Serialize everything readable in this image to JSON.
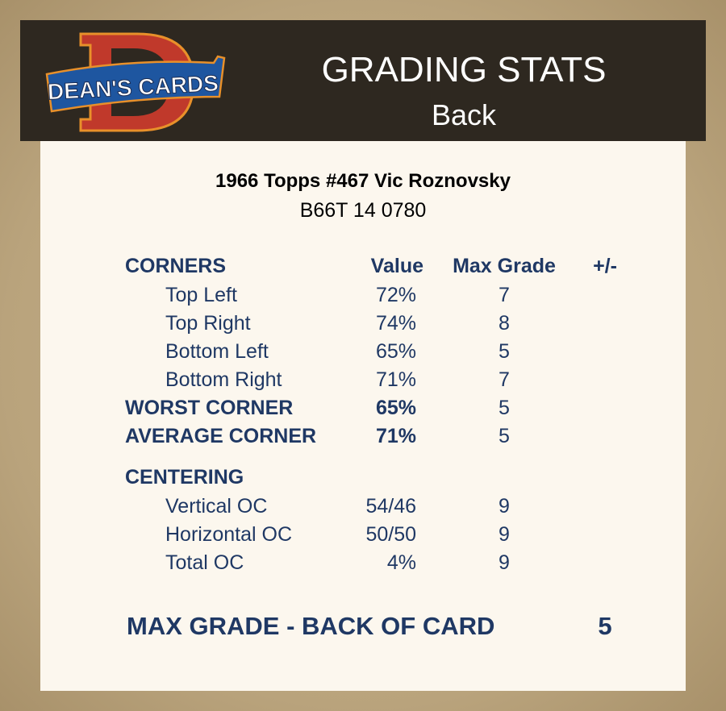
{
  "header": {
    "logo_text": "DEAN'S CARDS",
    "title": "GRADING STATS",
    "subtitle": "Back"
  },
  "card": {
    "name": "1966 Topps #467 Vic Roznovsky",
    "code": "B66T 14 0780"
  },
  "columns": {
    "section": "CORNERS",
    "value": "Value",
    "max_grade": "Max Grade",
    "plus_minus": "+/-"
  },
  "corners": [
    {
      "label": "Top Left",
      "value": "72%",
      "max_grade": "7"
    },
    {
      "label": "Top Right",
      "value": "74%",
      "max_grade": "8"
    },
    {
      "label": "Bottom Left",
      "value": "65%",
      "max_grade": "5"
    },
    {
      "label": "Bottom Right",
      "value": "71%",
      "max_grade": "7"
    }
  ],
  "worst": {
    "label": "WORST CORNER",
    "value": "65%",
    "max_grade": "5"
  },
  "average": {
    "label": "AVERAGE CORNER",
    "value": "71%",
    "max_grade": "5"
  },
  "centering_title": "CENTERING",
  "centering": [
    {
      "label": "Vertical OC",
      "value": "54/46",
      "max_grade": "9"
    },
    {
      "label": "Horizontal OC",
      "value": "50/50",
      "max_grade": "9"
    },
    {
      "label": "Total OC",
      "value": "4%",
      "max_grade": "9"
    }
  ],
  "final": {
    "label": "MAX GRADE - BACK OF CARD",
    "value": "5"
  },
  "colors": {
    "text": "#1f3864",
    "header_bg": "#2e2820",
    "panel_bg": "#fcf7ee"
  }
}
